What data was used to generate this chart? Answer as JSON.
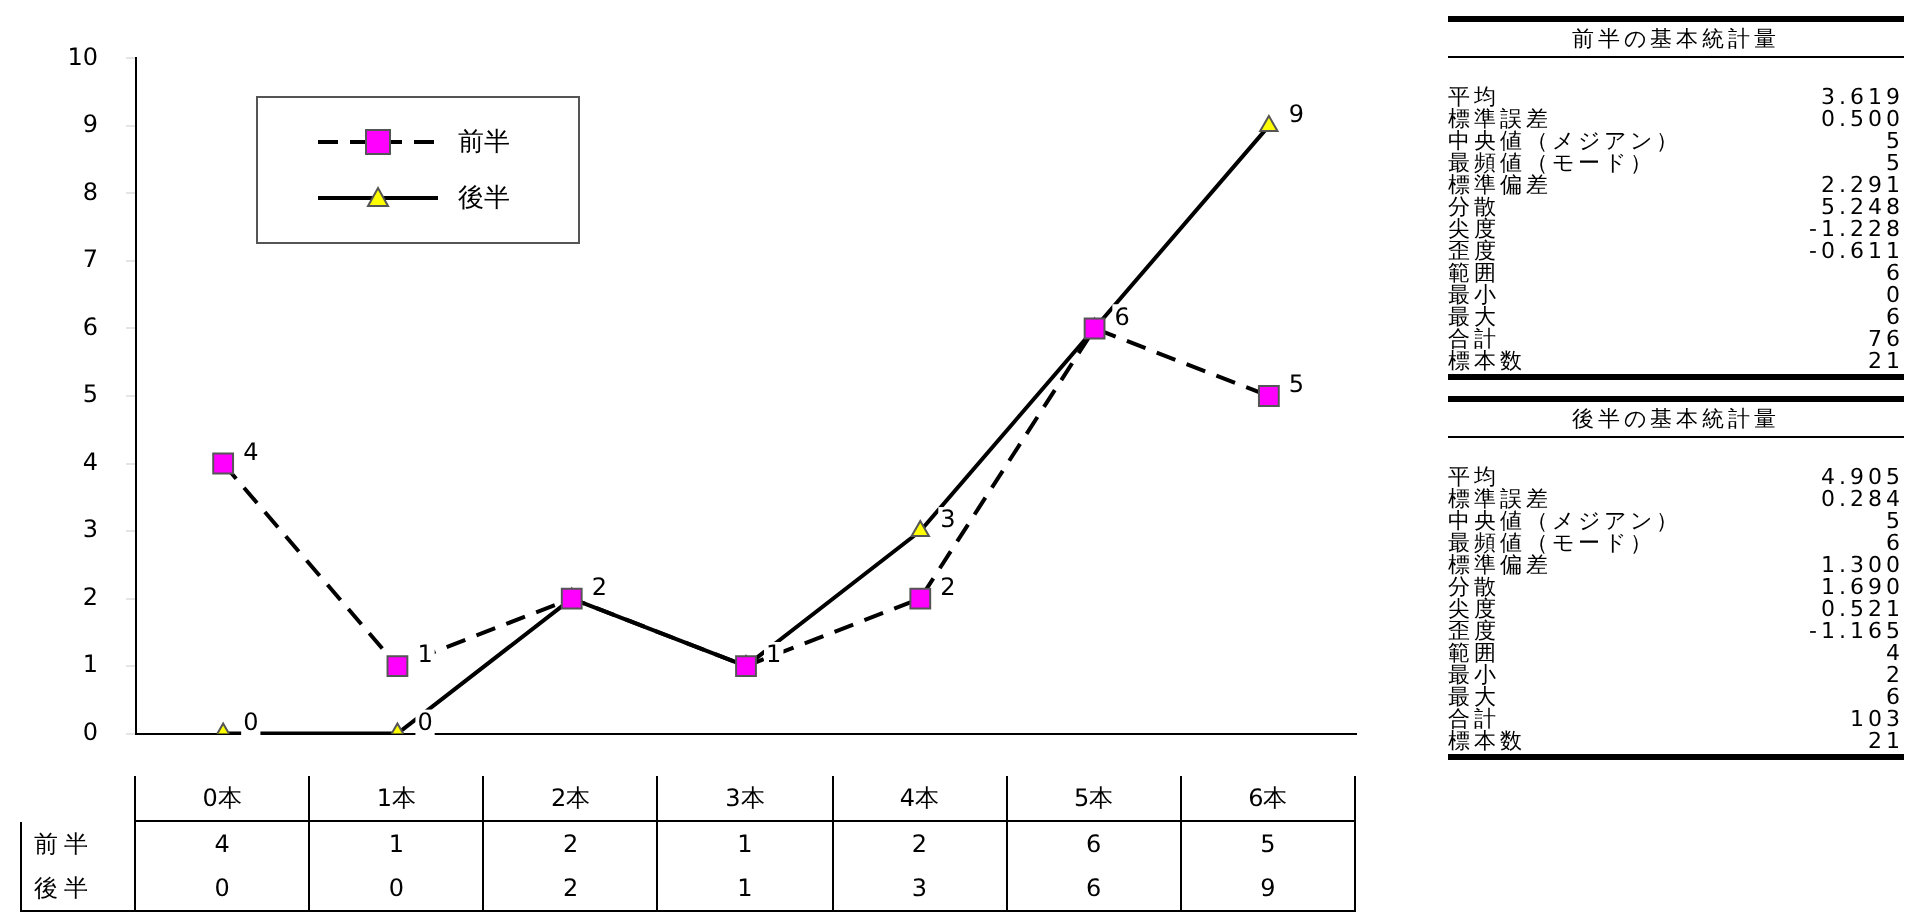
{
  "chart_data": [
    {
      "type": "line",
      "categories": [
        "0本",
        "1本",
        "2本",
        "3本",
        "4本",
        "5本",
        "6本"
      ],
      "series": [
        {
          "name": "前半",
          "color": "#ff00ff",
          "values": [
            4,
            1,
            2,
            1,
            2,
            6,
            5
          ],
          "value_labels": [
            "4",
            "1",
            "2",
            "1",
            "2",
            "6",
            "5"
          ],
          "marker": "square",
          "line_style": "dashed"
        },
        {
          "name": "後半",
          "color": "#ffff00",
          "values": [
            0,
            0,
            2,
            1,
            3,
            6,
            9
          ],
          "value_labels": [
            "0",
            "0",
            "2",
            "1",
            "3",
            "6",
            "9"
          ],
          "marker": "triangle",
          "line_style": "solid"
        }
      ],
      "ylim": [
        0,
        10
      ],
      "yticks": [
        0,
        1,
        2,
        3,
        4,
        5,
        6,
        7,
        8,
        9,
        10
      ],
      "grid": false,
      "legend": "top left",
      "data_labels": true
    },
    {
      "type": "other",
      "title": "前半の基本統計量",
      "annotations": [
        "平均 3.619",
        "標準誤差 0.500",
        "中央値（メジアン） 5",
        "最頻値（モード） 5",
        "標準偏差 2.291",
        "分散 5.248",
        "尖度 -1.228",
        "歪度 -0.611",
        "範囲 6",
        "最小 0",
        "最大 6",
        "合計 76",
        "標本数 21"
      ]
    },
    {
      "type": "other",
      "title": "後半の基本統計量",
      "annotations": [
        "平均 4.905",
        "標準誤差 0.284",
        "中央値（メジアン） 5",
        "最頻値（モード） 6",
        "標準偏差 1.300",
        "分散 1.690",
        "尖度 0.521",
        "歪度 -1.165",
        "範囲 4",
        "最小 2",
        "最大 6",
        "合計 103",
        "標本数 21"
      ]
    }
  ]
}
